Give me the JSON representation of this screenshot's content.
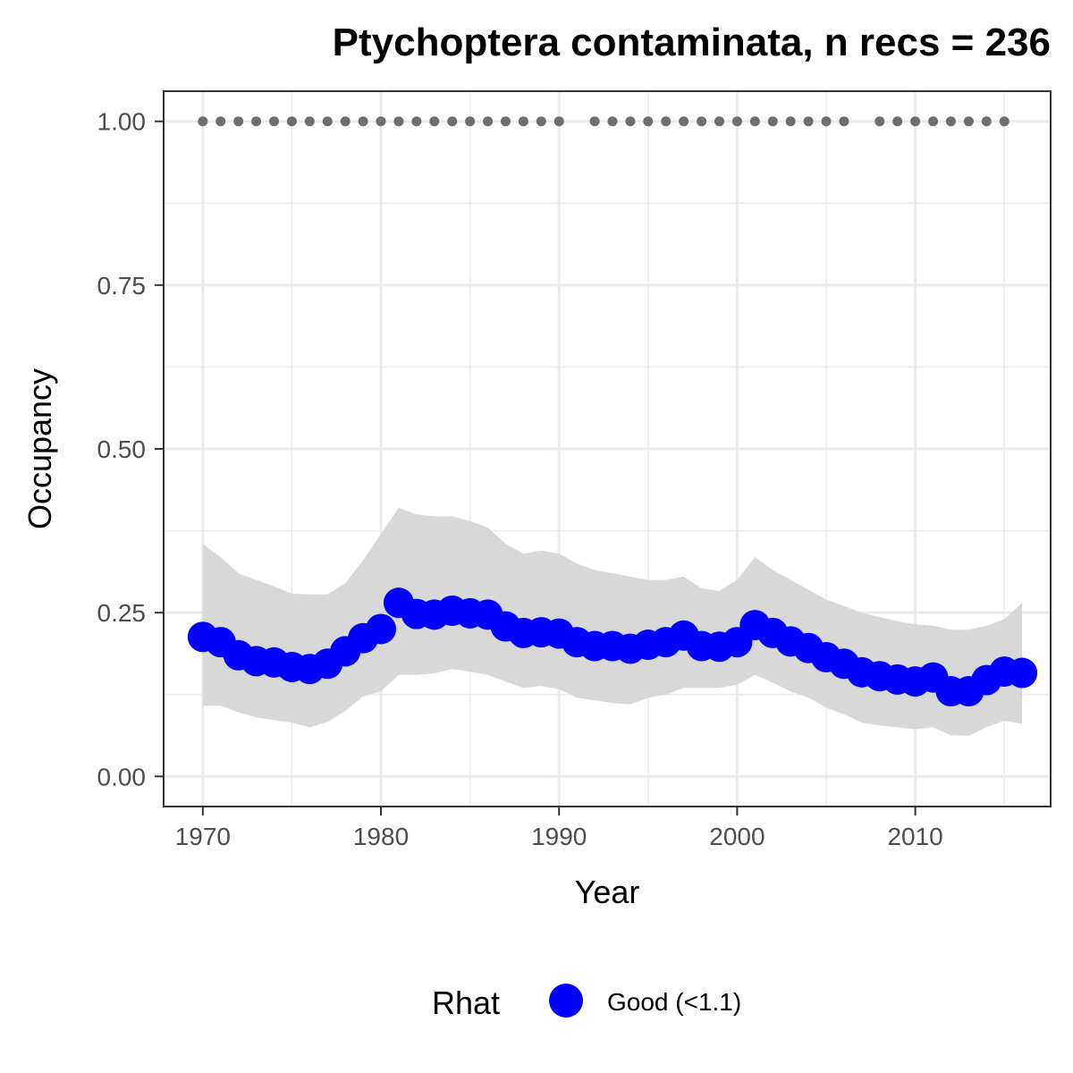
{
  "chart_data": {
    "type": "line",
    "title": "Ptychoptera contaminata, n recs = 236",
    "xlabel": "Year",
    "ylabel": "Occupancy",
    "xlim": [
      1967.8,
      2017.6
    ],
    "ylim": [
      -0.046,
      1.046
    ],
    "xticks": [
      1970,
      1980,
      1990,
      2000,
      2010
    ],
    "xtick_labels": [
      "1970",
      "1980",
      "1990",
      "2000",
      "2010"
    ],
    "yticks": [
      0,
      0.25,
      0.5,
      0.75,
      1.0
    ],
    "ytick_labels": [
      "0.00",
      "0.25",
      "0.50",
      "0.75",
      "1.00"
    ],
    "grid": true,
    "legend": {
      "position": "bottom",
      "title": "Rhat",
      "entries": [
        {
          "label": "Good (<1.1)",
          "color": "#0000ff"
        }
      ]
    },
    "colors": {
      "mean": "#0000ff",
      "ribbon": "#d6d6d6",
      "record_years": "#6e6e6e",
      "panel_border": "#333333",
      "grid": "#ebebeb"
    },
    "series": [
      {
        "name": "Good (<1.1)",
        "x": [
          1970,
          1971,
          1972,
          1973,
          1974,
          1975,
          1976,
          1977,
          1978,
          1979,
          1980,
          1981,
          1982,
          1983,
          1984,
          1985,
          1986,
          1987,
          1988,
          1989,
          1990,
          1991,
          1992,
          1993,
          1994,
          1995,
          1996,
          1997,
          1998,
          1999,
          2000,
          2001,
          2002,
          2003,
          2004,
          2005,
          2006,
          2007,
          2008,
          2009,
          2010,
          2011,
          2012,
          2013,
          2014,
          2015,
          2016
        ],
        "y": [
          0.213,
          0.205,
          0.185,
          0.176,
          0.174,
          0.167,
          0.164,
          0.172,
          0.191,
          0.211,
          0.225,
          0.265,
          0.248,
          0.247,
          0.253,
          0.249,
          0.247,
          0.229,
          0.219,
          0.22,
          0.218,
          0.205,
          0.199,
          0.199,
          0.195,
          0.201,
          0.205,
          0.215,
          0.199,
          0.198,
          0.205,
          0.231,
          0.219,
          0.206,
          0.196,
          0.182,
          0.172,
          0.159,
          0.153,
          0.148,
          0.145,
          0.151,
          0.13,
          0.13,
          0.147,
          0.16,
          0.158
        ],
        "lower": [
          0.108,
          0.108,
          0.098,
          0.09,
          0.086,
          0.082,
          0.075,
          0.083,
          0.1,
          0.122,
          0.13,
          0.155,
          0.155,
          0.157,
          0.164,
          0.16,
          0.155,
          0.145,
          0.135,
          0.138,
          0.133,
          0.12,
          0.116,
          0.112,
          0.11,
          0.12,
          0.125,
          0.135,
          0.135,
          0.135,
          0.14,
          0.155,
          0.143,
          0.13,
          0.12,
          0.105,
          0.095,
          0.082,
          0.078,
          0.075,
          0.072,
          0.075,
          0.063,
          0.062,
          0.075,
          0.085,
          0.08
        ],
        "upper": [
          0.355,
          0.335,
          0.31,
          0.3,
          0.29,
          0.279,
          0.278,
          0.278,
          0.295,
          0.33,
          0.37,
          0.41,
          0.4,
          0.397,
          0.397,
          0.39,
          0.38,
          0.355,
          0.34,
          0.345,
          0.34,
          0.325,
          0.315,
          0.31,
          0.305,
          0.3,
          0.3,
          0.305,
          0.287,
          0.283,
          0.3,
          0.335,
          0.315,
          0.3,
          0.285,
          0.27,
          0.26,
          0.25,
          0.243,
          0.237,
          0.232,
          0.23,
          0.224,
          0.224,
          0.23,
          0.24,
          0.265
        ]
      }
    ],
    "record_years": {
      "y": 1.0,
      "years": [
        1970,
        1971,
        1972,
        1973,
        1974,
        1975,
        1976,
        1977,
        1978,
        1979,
        1980,
        1981,
        1982,
        1983,
        1984,
        1985,
        1986,
        1987,
        1988,
        1989,
        1990,
        1992,
        1993,
        1994,
        1995,
        1996,
        1997,
        1998,
        1999,
        2000,
        2001,
        2002,
        2003,
        2004,
        2005,
        2006,
        2008,
        2009,
        2010,
        2011,
        2012,
        2013,
        2014,
        2015
      ]
    }
  }
}
